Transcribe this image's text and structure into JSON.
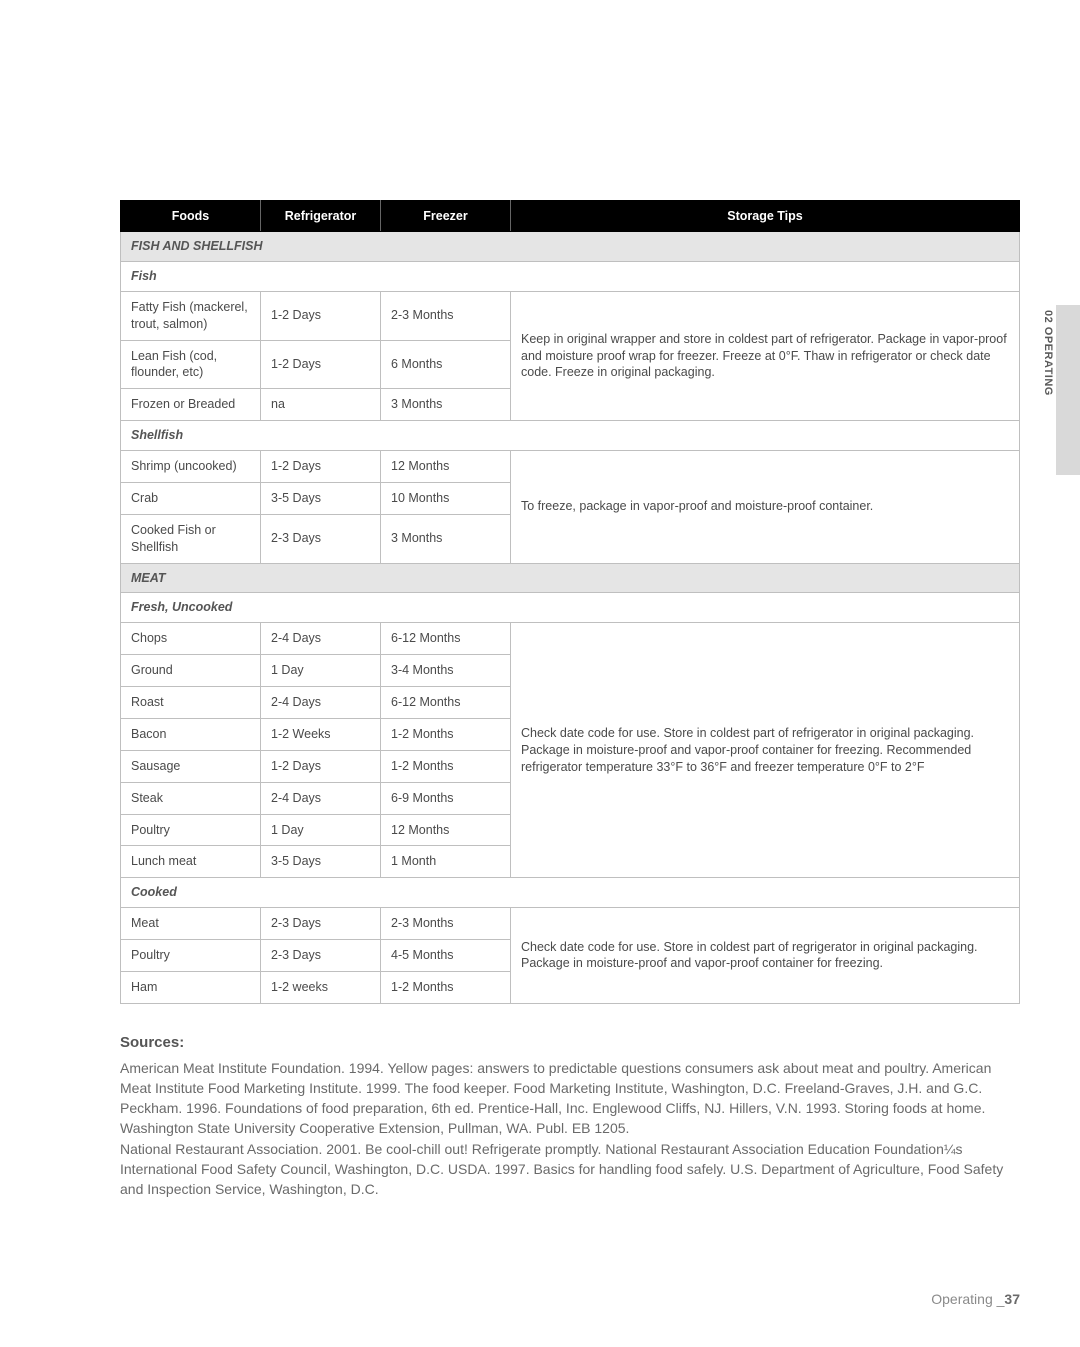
{
  "side_label": "02 OPERATING",
  "table": {
    "headers": {
      "foods": "Foods",
      "refrigerator": "Refrigerator",
      "freezer": "Freezer",
      "tips": "Storage Tips"
    },
    "col_widths": {
      "foods": 140,
      "refrigerator": 120,
      "freezer": 130
    },
    "colors": {
      "header_bg": "#000000",
      "header_fg": "#ffffff",
      "section_bg": "#e5e5e5",
      "border": "#bfbfbf",
      "text": "#4a4a4a",
      "muted": "#6a6a6a"
    },
    "sections": [
      {
        "type": "section",
        "label": "FISH AND SHELLFISH"
      },
      {
        "type": "subsection",
        "label": "Fish"
      },
      {
        "type": "group",
        "tips": "Keep in original wrapper and store in coldest part of refrigerator. Package in vapor-proof and moisture proof wrap for freezer. Freeze at 0°F. Thaw in refrigerator or check date code. Freeze in original packaging.",
        "rows": [
          {
            "food": "Fatty Fish (mackerel, trout, salmon)",
            "ref": "1-2 Days",
            "frz": "2-3 Months"
          },
          {
            "food": "Lean Fish (cod, flounder, etc)",
            "ref": "1-2 Days",
            "frz": "6 Months"
          },
          {
            "food": "Frozen or Breaded",
            "ref": "na",
            "frz": "3 Months"
          }
        ]
      },
      {
        "type": "subsection",
        "label": "Shellfish"
      },
      {
        "type": "group",
        "tips": "To freeze, package in vapor-proof and moisture-proof container.",
        "rows": [
          {
            "food": "Shrimp (uncooked)",
            "ref": "1-2 Days",
            "frz": "12 Months"
          },
          {
            "food": "Crab",
            "ref": "3-5 Days",
            "frz": "10 Months"
          },
          {
            "food": "Cooked Fish or Shellfish",
            "ref": "2-3 Days",
            "frz": "3 Months"
          }
        ]
      },
      {
        "type": "section",
        "label": "MEAT"
      },
      {
        "type": "subsection",
        "label": "Fresh, Uncooked"
      },
      {
        "type": "group",
        "tips": "Check date code for use. Store in coldest part of refrigerator in original packaging. Package in moisture-proof and vapor-proof container for freezing. Recommended refrigerator temperature 33°F to 36°F and freezer temperature 0°F to 2°F",
        "rows": [
          {
            "food": "Chops",
            "ref": "2-4 Days",
            "frz": "6-12 Months"
          },
          {
            "food": "Ground",
            "ref": "1 Day",
            "frz": "3-4 Months"
          },
          {
            "food": "Roast",
            "ref": "2-4 Days",
            "frz": "6-12 Months"
          },
          {
            "food": "Bacon",
            "ref": "1-2 Weeks",
            "frz": "1-2 Months"
          },
          {
            "food": "Sausage",
            "ref": "1-2 Days",
            "frz": "1-2 Months"
          },
          {
            "food": "Steak",
            "ref": "2-4 Days",
            "frz": "6-9 Months"
          },
          {
            "food": "Poultry",
            "ref": "1 Day",
            "frz": "12 Months"
          },
          {
            "food": "Lunch meat",
            "ref": "3-5 Days",
            "frz": "1 Month"
          }
        ]
      },
      {
        "type": "subsection",
        "label": "Cooked"
      },
      {
        "type": "group",
        "tips": "Check date code for use. Store in coldest part of regrigerator in original packaging. Package in moisture-proof and vapor-proof container for freezing.",
        "rows": [
          {
            "food": "Meat",
            "ref": "2-3 Days",
            "frz": "2-3 Months"
          },
          {
            "food": "Poultry",
            "ref": "2-3 Days",
            "frz": "4-5 Months"
          },
          {
            "food": "Ham",
            "ref": "1-2 weeks",
            "frz": "1-2 Months"
          }
        ]
      }
    ]
  },
  "sources": {
    "heading": "Sources:",
    "text": "American Meat Institute Foundation. 1994. Yellow pages: answers to predictable questions consumers ask about meat and poultry. American Meat Institute Food Marketing Institute. 1999. The food keeper. Food Marketing Institute, Washington, D.C. Freeland-Graves, J.H. and G.C. Peckham. 1996. Foundations of food preparation, 6th ed. Prentice-Hall, Inc. Englewood Cliffs, NJ. Hillers, V.N. 1993. Storing foods at home. Washington State University Cooperative Extension, Pullman, WA. Publ. EB 1205.\nNational Restaurant Association. 2001. Be cool-chill out! Refrigerate promptly. National Restaurant Association Education Foundation¼s International Food Safety Council, Washington, D.C. USDA. 1997. Basics for handling food safely. U.S. Department of Agriculture, Food Safety and Inspection Service, Washington, D.C."
  },
  "footer": {
    "label": "Operating _",
    "page": "37"
  }
}
